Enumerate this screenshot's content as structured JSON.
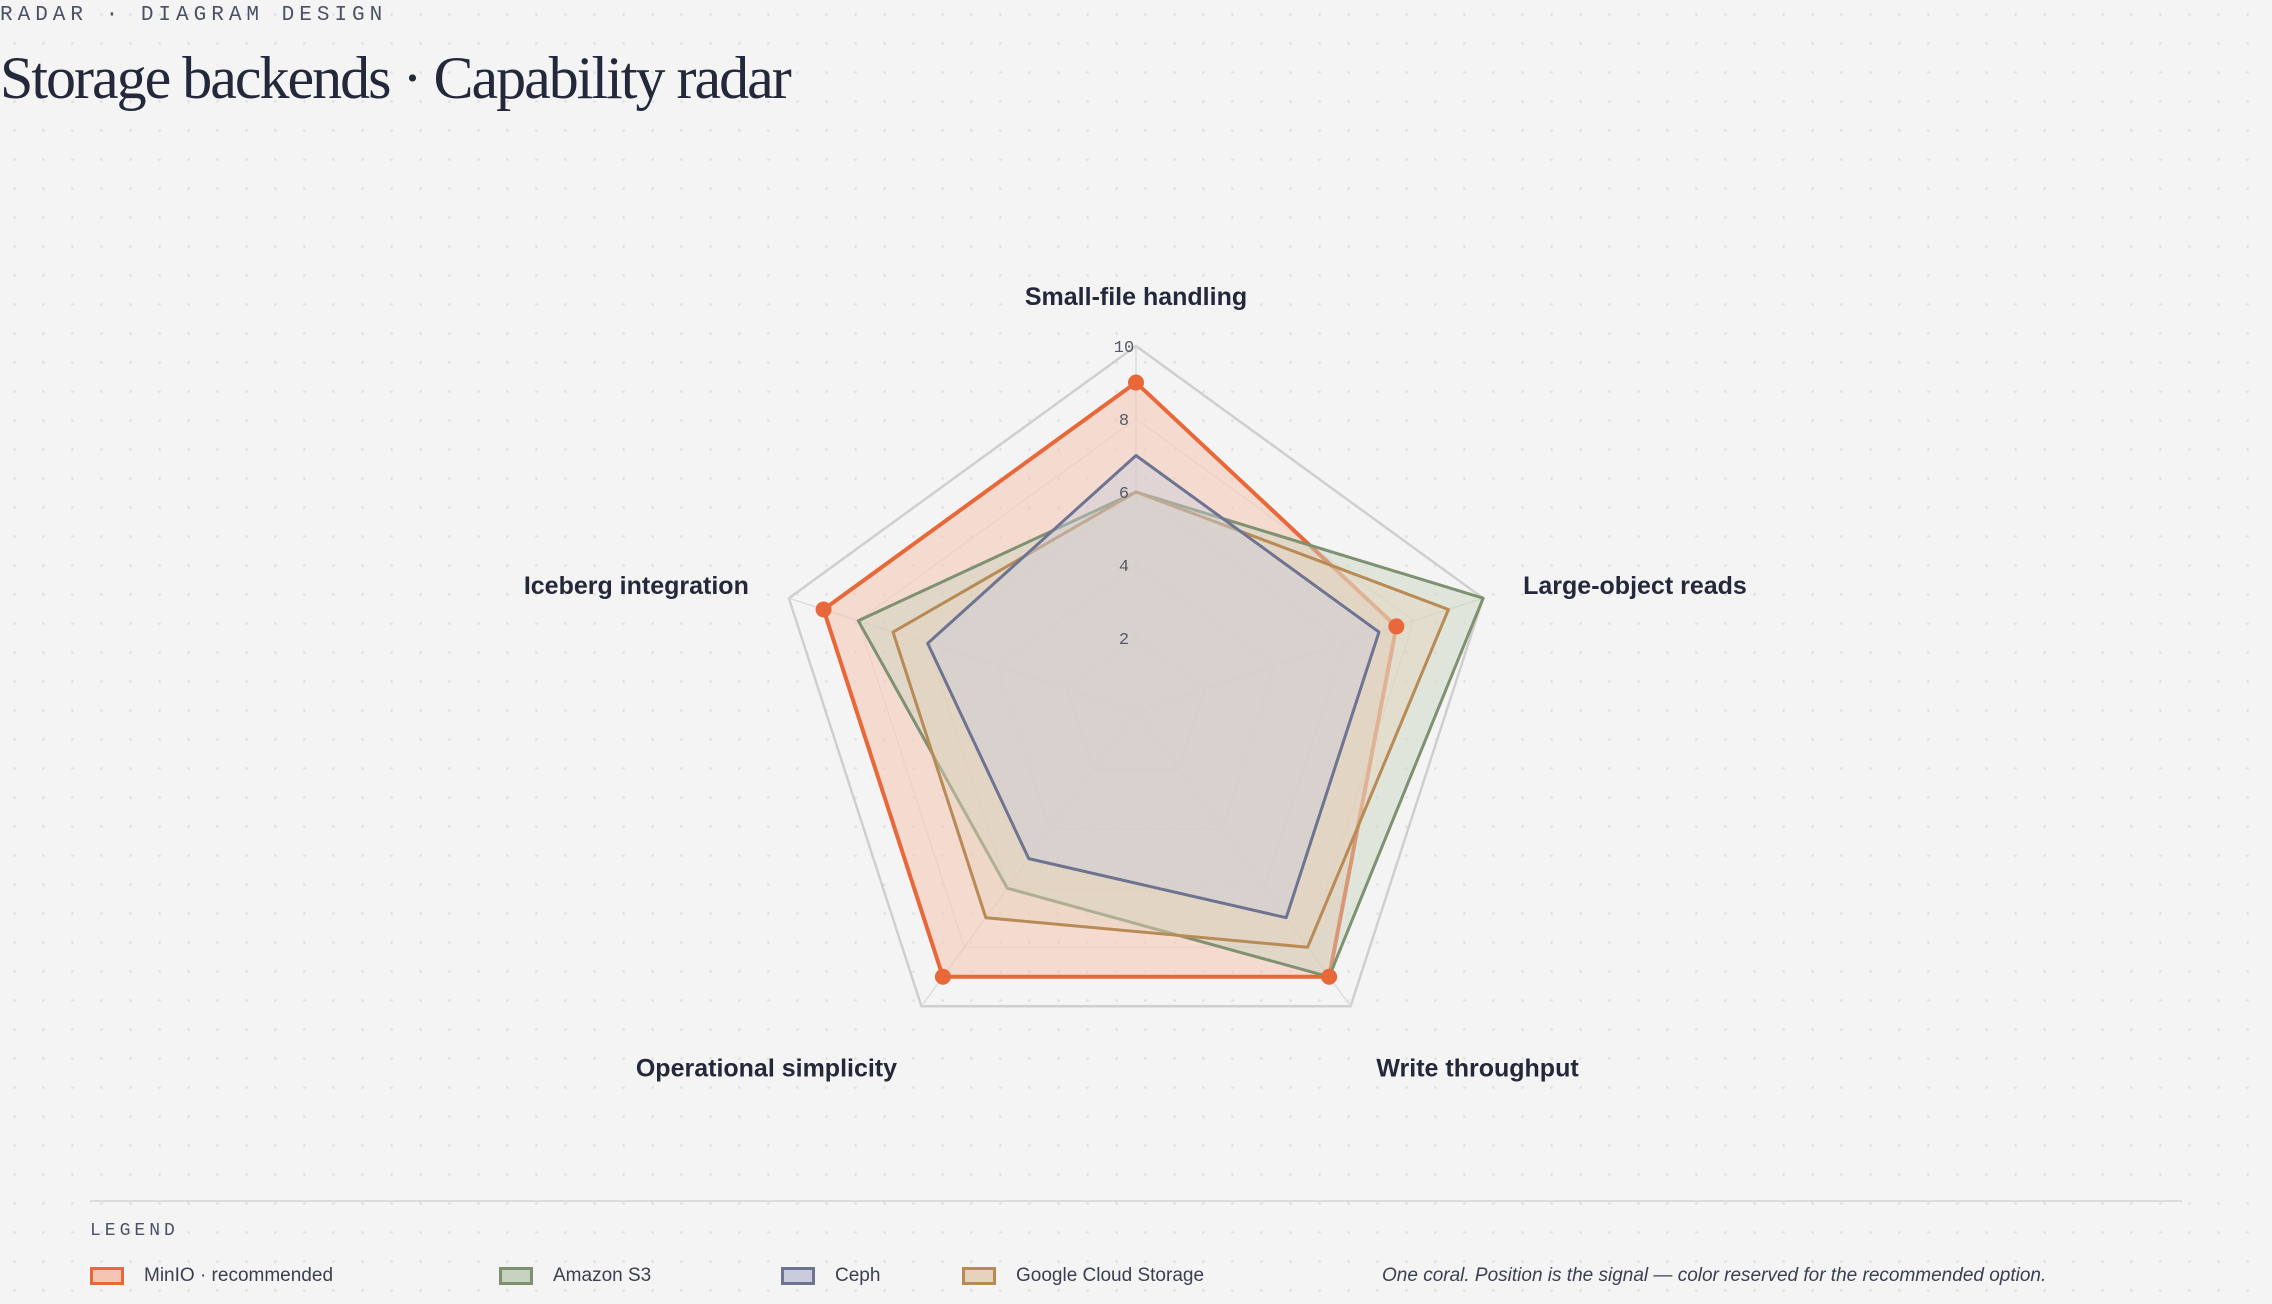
{
  "header": {
    "eyebrow": "RADAR · DIAGRAM DESIGN",
    "title": "Storage backends · Capability radar"
  },
  "chart_data": {
    "type": "radar",
    "axes": [
      "Small-file handling",
      "Large-object reads",
      "Write throughput",
      "Operational simplicity",
      "Iceberg integration"
    ],
    "ticks": [
      "2",
      "4",
      "6",
      "8",
      "10"
    ],
    "range": [
      0,
      10
    ],
    "grid": true,
    "series": [
      {
        "name": "MinIO · recommended",
        "values": [
          9,
          7.5,
          9,
          9,
          9
        ],
        "color": "#e8683a",
        "fill": "#f5c4b3",
        "markers": true
      },
      {
        "name": "Amazon S3",
        "values": [
          6,
          10,
          9,
          6,
          8
        ],
        "color": "#7e9170",
        "fill": "#c7d2bf",
        "markers": false
      },
      {
        "name": "Ceph",
        "values": [
          7,
          7,
          7,
          5,
          6
        ],
        "color": "#6d7390",
        "fill": "#c9cbdc",
        "markers": false
      },
      {
        "name": "Google Cloud Storage",
        "values": [
          6,
          9,
          8,
          7,
          7
        ],
        "color": "#b88a55",
        "fill": "#e6d3bd",
        "markers": false
      }
    ]
  },
  "legend": {
    "title": "LEGEND",
    "note": "One coral. Position is the signal — color reserved for the recommended option."
  }
}
